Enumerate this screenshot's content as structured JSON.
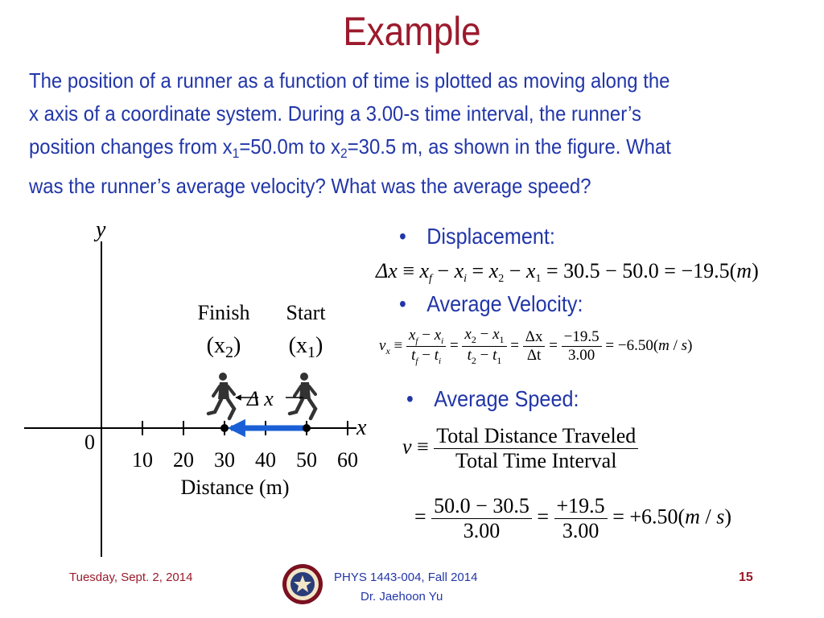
{
  "title": "Example",
  "problem": {
    "line1": "The position of a runner as a function of time is plotted as moving along the",
    "line2": "x axis of a coordinate system.  During a 3.00-s time interval, the runner’s",
    "line3a": "position changes from x",
    "line3b": "1",
    "line3c": "=50.0m to x",
    "line3d": "2",
    "line3e": "=30.5 m, as shown in the figure.  What",
    "line4": "was the runner’s average velocity?  What was the average speed?"
  },
  "figure": {
    "y_axis_label": "y",
    "x_axis_label": "x",
    "origin_label": "0",
    "ticks": [
      "10",
      "20",
      "30",
      "40",
      "50",
      "60"
    ],
    "xlabel": "Distance (m)",
    "finish_label": "Finish",
    "finish_sub": "(x",
    "finish_sub_idx": "2",
    "finish_close": ")",
    "start_label": "Start",
    "start_sub": "(x",
    "start_sub_idx": "1",
    "start_close": ")",
    "delta_label": "Δ x"
  },
  "bullets": {
    "displacement": "Displacement:",
    "avg_velocity": "Average Velocity:",
    "avg_speed": "Average Speed:"
  },
  "equations": {
    "disp": {
      "lhs": "Δx ≡ x",
      "f": "f",
      "minus": " − x",
      "i": "i",
      "eq1": " = x",
      "two": "2",
      "minus2": " − x",
      "one": "1",
      "rest": " = 30.5 − 50.0 = −19.5(m)"
    },
    "vel": {
      "v": "v",
      "x": "x",
      "equiv": " ≡ ",
      "f1_num": "x",
      "f1_num_f": "f",
      "f1_num_mid": " − x",
      "f1_num_i": "i",
      "f1_den": "t",
      "f1_den_f": "f",
      "f1_den_mid": " − t",
      "f1_den_i": "i",
      "f2_num": "x",
      "f2_num_2": "2",
      "f2_num_mid": " − x",
      "f2_num_1": "1",
      "f2_den": "t",
      "f2_den_2": "2",
      "f2_den_mid": " − t",
      "f2_den_1": "1",
      "f3_num": "Δx",
      "f3_den": "Δt",
      "f4_num": "−19.5",
      "f4_den": "3.00",
      "eq": " = ",
      "result": " = −6.50(m / s)"
    },
    "speed": {
      "v": "v",
      "equiv": " ≡ ",
      "f1_num": "Total Distance Traveled",
      "f1_den": "Total Time Interval",
      "f2_num": "50.0 − 30.5",
      "f2_den": "3.00",
      "f3_num": "+19.5",
      "f3_den": "3.00",
      "eq": " = ",
      "result": " = +6.50(m / s)"
    }
  },
  "footer": {
    "date": "Tuesday, Sept. 2, 2014",
    "course": "PHYS 1443-004, Fall 2014",
    "instructor": "Dr. Jaehoon Yu",
    "page": "15"
  },
  "colors": {
    "title": "#9b1a2c",
    "body_text": "#2236a8",
    "arrow": "#1a5fd6"
  },
  "icons": [
    "runner-icon",
    "university-seal-icon"
  ]
}
